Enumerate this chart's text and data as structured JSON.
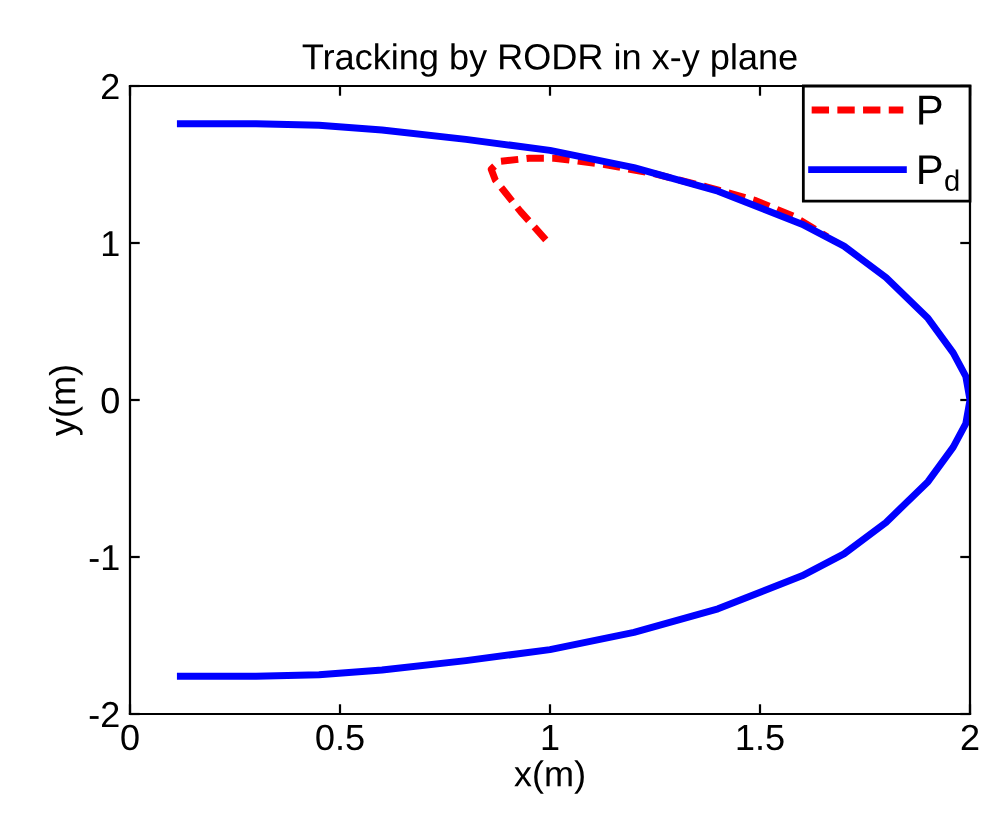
{
  "chart_data": {
    "type": "line",
    "title": "Tracking by RODR in x-y plane",
    "xlabel": "x(m)",
    "ylabel": "y(m)",
    "xlim": [
      0,
      2
    ],
    "ylim": [
      -2,
      2
    ],
    "xticks": [
      0,
      0.5,
      1,
      1.5,
      2
    ],
    "yticks": [
      -2,
      -1,
      0,
      1,
      2
    ],
    "grid": false,
    "legend": "top right",
    "series": [
      {
        "name": "P",
        "color": "#ff0000",
        "line_style": "dashed",
        "x": [
          0.99,
          0.93,
          0.87,
          0.86,
          0.88,
          0.95,
          1.01,
          1.13,
          1.25,
          1.37,
          1.49,
          1.58,
          1.66
        ],
        "values": [
          1.02,
          1.2,
          1.4,
          1.47,
          1.52,
          1.54,
          1.54,
          1.5,
          1.44,
          1.36,
          1.27,
          1.17,
          1.04
        ]
      },
      {
        "name": "P$_{d}$",
        "color": "#0000ff",
        "line_style": "solid",
        "x": [
          0.12,
          0.3,
          0.45,
          0.6,
          0.8,
          1.0,
          1.2,
          1.4,
          1.6,
          1.7,
          1.8,
          1.9,
          1.96,
          1.99,
          2.0,
          1.99,
          1.96,
          1.9,
          1.8,
          1.7,
          1.6,
          1.4,
          1.2,
          1.0,
          0.8,
          0.6,
          0.45,
          0.3,
          0.12
        ],
        "values": [
          1.76,
          1.76,
          1.75,
          1.72,
          1.66,
          1.59,
          1.48,
          1.33,
          1.12,
          0.98,
          0.78,
          0.52,
          0.3,
          0.15,
          0,
          -0.15,
          -0.3,
          -0.52,
          -0.78,
          -0.98,
          -1.12,
          -1.33,
          -1.48,
          -1.59,
          -1.66,
          -1.72,
          -1.75,
          -1.76,
          -1.76
        ]
      }
    ]
  }
}
